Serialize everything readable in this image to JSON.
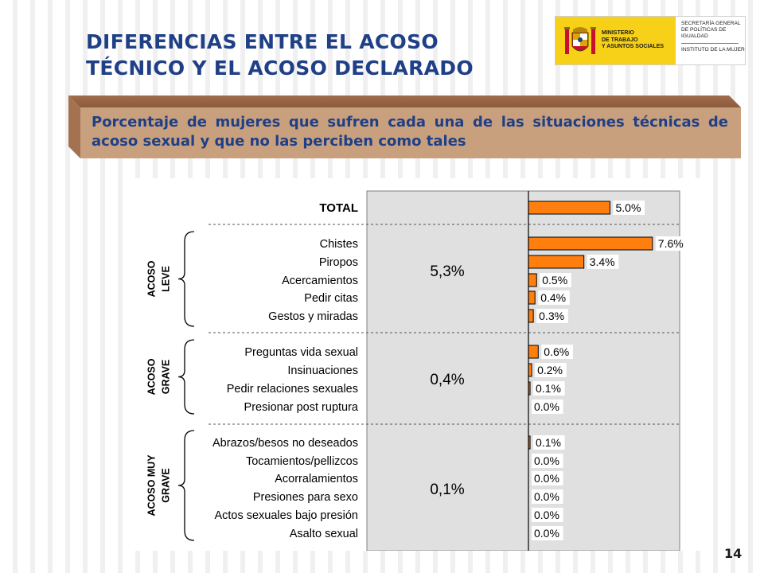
{
  "header": {
    "title_line1": "DIFERENCIAS ENTRE EL ACOSO",
    "title_line2": "TÉCNICO Y EL ACOSO DECLARADO"
  },
  "logo": {
    "ministry": "MINISTERIO\nDE TRABAJO\nY ASUNTOS SOCIALES",
    "secretaria": "SECRETARÍA GENERAL DE POLÍTICAS DE IGUALDAD",
    "instituto": "INSTITUTO DE LA MUJER"
  },
  "banner": {
    "text": "Porcentaje de mujeres que sufren cada una de las situaciones técnicas de acoso sexual y que no las perciben como tales"
  },
  "chart_data": {
    "type": "bar",
    "orientation": "horizontal",
    "bar_color": "#ff7f0e",
    "panel_color": "#e0e0e0",
    "xlim": [
      0,
      8
    ],
    "total": {
      "category": "TOTAL",
      "value": 5.0,
      "label": "5.0%"
    },
    "groups": [
      {
        "name": "ACOSO LEVE",
        "name_lines": [
          "ACOSO",
          "LEVE"
        ],
        "declared": "5,3%",
        "items": [
          {
            "category": "Chistes",
            "value": 7.6,
            "label": "7.6%"
          },
          {
            "category": "Piropos",
            "value": 3.4,
            "label": "3.4%"
          },
          {
            "category": "Acercamientos",
            "value": 0.5,
            "label": "0.5%"
          },
          {
            "category": "Pedir citas",
            "value": 0.4,
            "label": "0.4%"
          },
          {
            "category": "Gestos y miradas",
            "value": 0.3,
            "label": "0.3%"
          }
        ]
      },
      {
        "name": "ACOSO GRAVE",
        "name_lines": [
          "ACOSO",
          "GRAVE"
        ],
        "declared": "0,4%",
        "items": [
          {
            "category": "Preguntas vida sexual",
            "value": 0.6,
            "label": "0.6%"
          },
          {
            "category": "Insinuaciones",
            "value": 0.2,
            "label": "0.2%"
          },
          {
            "category": "Pedir relaciones sexuales",
            "value": 0.1,
            "label": "0.1%"
          },
          {
            "category": "Presionar post ruptura",
            "value": 0.0,
            "label": "0.0%"
          }
        ]
      },
      {
        "name": "ACOSO MUY GRAVE",
        "name_lines": [
          "ACOSO MUY",
          "GRAVE"
        ],
        "declared": "0,1%",
        "items": [
          {
            "category": "Abrazos/besos no deseados",
            "value": 0.1,
            "label": "0.1%"
          },
          {
            "category": "Tocamientos/pellizcos",
            "value": 0.0,
            "label": "0.0%"
          },
          {
            "category": "Acorralamientos",
            "value": 0.0,
            "label": "0.0%"
          },
          {
            "category": "Presiones para sexo",
            "value": 0.0,
            "label": "0.0%"
          },
          {
            "category": "Actos sexuales bajo presión",
            "value": 0.0,
            "label": "0.0%"
          },
          {
            "category": "Asalto sexual",
            "value": 0.0,
            "label": "0.0%"
          }
        ]
      }
    ]
  },
  "footer": {
    "page_number": "14"
  }
}
